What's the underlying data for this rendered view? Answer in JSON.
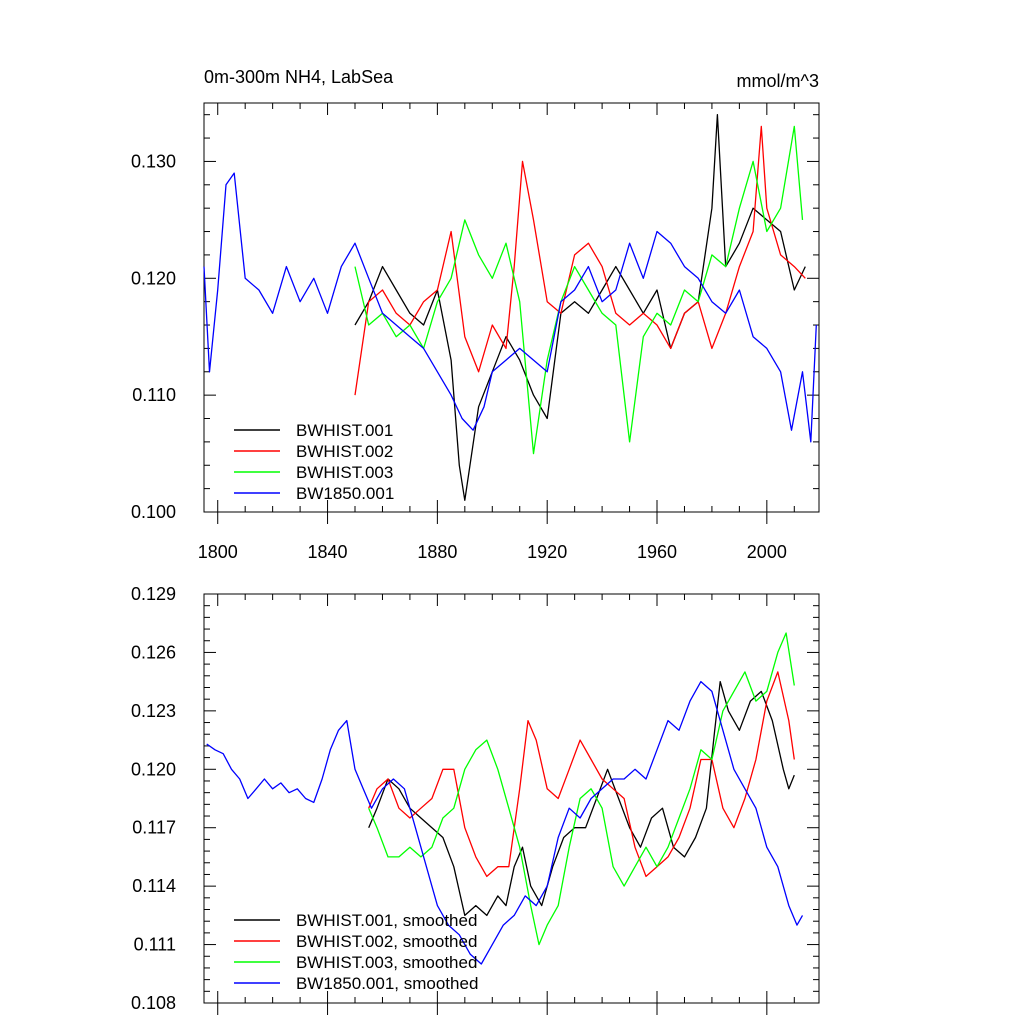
{
  "chart_data": [
    {
      "type": "line",
      "title": "0m-300m NH4, LabSea",
      "units": "mmol/m^3",
      "xlabel": "",
      "ylabel": "",
      "xlim": [
        1795,
        2019
      ],
      "ylim": [
        0.1,
        0.135
      ],
      "xticks": [
        1800,
        1840,
        1880,
        1920,
        1960,
        2000
      ],
      "xtick_labels": [
        "1800",
        "1840",
        "1880",
        "1920",
        "1960",
        "2000"
      ],
      "yticks": [
        0.1,
        0.11,
        0.12,
        0.13
      ],
      "ytick_labels": [
        "0.100",
        "0.110",
        "0.120",
        "0.130"
      ],
      "legend_position": "bottom-left",
      "series": [
        {
          "name": "BWHIST.001",
          "color": "#000000",
          "x": [
            1850,
            1855,
            1860,
            1865,
            1870,
            1875,
            1880,
            1885,
            1888,
            1890,
            1895,
            1900,
            1905,
            1910,
            1915,
            1920,
            1925,
            1930,
            1935,
            1940,
            1945,
            1950,
            1955,
            1960,
            1965,
            1970,
            1975,
            1980,
            1982,
            1985,
            1990,
            1995,
            2000,
            2005,
            2010,
            2014
          ],
          "values": [
            0.116,
            0.118,
            0.121,
            0.119,
            0.117,
            0.116,
            0.119,
            0.113,
            0.104,
            0.101,
            0.109,
            0.112,
            0.115,
            0.113,
            0.11,
            0.108,
            0.117,
            0.118,
            0.117,
            0.119,
            0.121,
            0.119,
            0.117,
            0.119,
            0.114,
            0.117,
            0.118,
            0.126,
            0.134,
            0.121,
            0.123,
            0.126,
            0.125,
            0.124,
            0.119,
            0.121
          ]
        },
        {
          "name": "BWHIST.002",
          "color": "#ff0000",
          "x": [
            1850,
            1855,
            1860,
            1865,
            1870,
            1875,
            1880,
            1885,
            1890,
            1895,
            1900,
            1905,
            1908,
            1911,
            1915,
            1920,
            1925,
            1930,
            1935,
            1940,
            1945,
            1950,
            1955,
            1960,
            1965,
            1970,
            1975,
            1980,
            1985,
            1990,
            1995,
            1998,
            2000,
            2005,
            2010,
            2014
          ],
          "values": [
            0.11,
            0.118,
            0.119,
            0.117,
            0.116,
            0.118,
            0.119,
            0.124,
            0.115,
            0.112,
            0.116,
            0.114,
            0.121,
            0.13,
            0.125,
            0.118,
            0.117,
            0.122,
            0.123,
            0.121,
            0.117,
            0.116,
            0.117,
            0.116,
            0.114,
            0.117,
            0.118,
            0.114,
            0.117,
            0.121,
            0.124,
            0.133,
            0.126,
            0.122,
            0.121,
            0.12
          ]
        },
        {
          "name": "BWHIST.003",
          "color": "#00ff00",
          "x": [
            1850,
            1855,
            1860,
            1865,
            1870,
            1875,
            1880,
            1885,
            1890,
            1895,
            1900,
            1905,
            1910,
            1915,
            1920,
            1925,
            1930,
            1935,
            1940,
            1945,
            1950,
            1955,
            1960,
            1965,
            1970,
            1975,
            1980,
            1985,
            1990,
            1995,
            2000,
            2005,
            2010,
            2013
          ],
          "values": [
            0.121,
            0.116,
            0.117,
            0.115,
            0.116,
            0.114,
            0.118,
            0.12,
            0.125,
            0.122,
            0.12,
            0.123,
            0.118,
            0.105,
            0.113,
            0.118,
            0.121,
            0.119,
            0.117,
            0.116,
            0.106,
            0.115,
            0.117,
            0.116,
            0.119,
            0.118,
            0.122,
            0.121,
            0.126,
            0.13,
            0.124,
            0.126,
            0.133,
            0.125
          ]
        },
        {
          "name": "BW1850.001",
          "color": "#0000ff",
          "x": [
            1795,
            1797,
            1800,
            1803,
            1806,
            1810,
            1815,
            1820,
            1825,
            1830,
            1835,
            1840,
            1845,
            1850,
            1855,
            1860,
            1865,
            1870,
            1875,
            1880,
            1885,
            1889,
            1893,
            1897,
            1900,
            1905,
            1910,
            1915,
            1920,
            1925,
            1930,
            1935,
            1940,
            1945,
            1950,
            1955,
            1960,
            1965,
            1970,
            1975,
            1980,
            1985,
            1990,
            1995,
            2000,
            2005,
            2009,
            2013,
            2016,
            2018
          ],
          "values": [
            0.121,
            0.112,
            0.119,
            0.128,
            0.129,
            0.12,
            0.119,
            0.117,
            0.121,
            0.118,
            0.12,
            0.117,
            0.121,
            0.123,
            0.12,
            0.117,
            0.116,
            0.115,
            0.114,
            0.112,
            0.11,
            0.108,
            0.107,
            0.109,
            0.112,
            0.113,
            0.114,
            0.113,
            0.112,
            0.118,
            0.119,
            0.121,
            0.118,
            0.119,
            0.123,
            0.12,
            0.124,
            0.123,
            0.121,
            0.12,
            0.118,
            0.117,
            0.119,
            0.115,
            0.114,
            0.112,
            0.107,
            0.112,
            0.106,
            0.116
          ]
        }
      ]
    },
    {
      "type": "line",
      "title": "",
      "xlabel": "",
      "ylabel": "",
      "xlim": [
        1795,
        2019
      ],
      "ylim": [
        0.108,
        0.129
      ],
      "yticks": [
        0.108,
        0.111,
        0.114,
        0.117,
        0.12,
        0.123,
        0.126,
        0.129
      ],
      "ytick_labels": [
        "0.108",
        "0.111",
        "0.114",
        "0.117",
        "0.120",
        "0.123",
        "0.126",
        "0.129"
      ],
      "legend_position": "bottom-left",
      "series": [
        {
          "name": "BWHIST.001, smoothed",
          "color": "#000000",
          "x": [
            1855,
            1858,
            1862,
            1866,
            1870,
            1874,
            1878,
            1882,
            1886,
            1890,
            1894,
            1898,
            1902,
            1905,
            1908,
            1911,
            1914,
            1918,
            1922,
            1926,
            1930,
            1934,
            1938,
            1942,
            1946,
            1950,
            1954,
            1958,
            1962,
            1966,
            1970,
            1974,
            1978,
            1981,
            1983,
            1986,
            1990,
            1994,
            1998,
            2002,
            2006,
            2008,
            2010
          ],
          "values": [
            0.117,
            0.118,
            0.1195,
            0.119,
            0.118,
            0.1175,
            0.117,
            0.1165,
            0.115,
            0.1125,
            0.113,
            0.1125,
            0.1135,
            0.113,
            0.115,
            0.116,
            0.114,
            0.113,
            0.115,
            0.1165,
            0.117,
            0.117,
            0.1185,
            0.12,
            0.1185,
            0.117,
            0.116,
            0.1175,
            0.118,
            0.116,
            0.1155,
            0.1165,
            0.118,
            0.122,
            0.1245,
            0.123,
            0.122,
            0.1235,
            0.124,
            0.1225,
            0.12,
            0.119,
            0.1197
          ]
        },
        {
          "name": "BWHIST.002, smoothed",
          "color": "#ff0000",
          "x": [
            1855,
            1858,
            1862,
            1866,
            1870,
            1874,
            1878,
            1882,
            1886,
            1890,
            1894,
            1898,
            1902,
            1906,
            1910,
            1913,
            1916,
            1920,
            1924,
            1928,
            1932,
            1936,
            1940,
            1944,
            1948,
            1952,
            1956,
            1960,
            1964,
            1968,
            1972,
            1976,
            1980,
            1984,
            1988,
            1992,
            1996,
            2000,
            2004,
            2008,
            2010
          ],
          "values": [
            0.118,
            0.119,
            0.1195,
            0.118,
            0.1175,
            0.118,
            0.1185,
            0.12,
            0.12,
            0.117,
            0.1155,
            0.1145,
            0.115,
            0.115,
            0.119,
            0.1225,
            0.1215,
            0.119,
            0.1185,
            0.12,
            0.1215,
            0.1205,
            0.1195,
            0.119,
            0.1185,
            0.116,
            0.1145,
            0.115,
            0.1155,
            0.1165,
            0.118,
            0.1205,
            0.1205,
            0.118,
            0.117,
            0.1185,
            0.1205,
            0.1235,
            0.125,
            0.1225,
            0.1205
          ]
        },
        {
          "name": "BWHIST.003, smoothed",
          "color": "#00ff00",
          "x": [
            1855,
            1858,
            1862,
            1866,
            1870,
            1874,
            1878,
            1882,
            1886,
            1890,
            1894,
            1898,
            1902,
            1906,
            1910,
            1914,
            1917,
            1920,
            1924,
            1928,
            1932,
            1936,
            1940,
            1944,
            1948,
            1952,
            1956,
            1960,
            1964,
            1968,
            1972,
            1976,
            1980,
            1984,
            1988,
            1992,
            1996,
            2000,
            2004,
            2007,
            2010
          ],
          "values": [
            0.118,
            0.117,
            0.1155,
            0.1155,
            0.116,
            0.1155,
            0.116,
            0.1175,
            0.118,
            0.12,
            0.121,
            0.1215,
            0.12,
            0.118,
            0.116,
            0.113,
            0.111,
            0.112,
            0.113,
            0.116,
            0.1185,
            0.119,
            0.118,
            0.115,
            0.114,
            0.115,
            0.116,
            0.115,
            0.116,
            0.1175,
            0.119,
            0.121,
            0.1205,
            0.123,
            0.124,
            0.125,
            0.1235,
            0.124,
            0.126,
            0.127,
            0.1243
          ]
        },
        {
          "name": "BW1850.001, smoothed",
          "color": "#0000ff",
          "x": [
            1796,
            1799,
            1802,
            1805,
            1808,
            1811,
            1814,
            1817,
            1820,
            1823,
            1826,
            1829,
            1832,
            1835,
            1838,
            1841,
            1844,
            1847,
            1850,
            1853,
            1856,
            1860,
            1864,
            1868,
            1872,
            1876,
            1880,
            1884,
            1888,
            1892,
            1896,
            1900,
            1904,
            1908,
            1912,
            1916,
            1920,
            1924,
            1928,
            1932,
            1936,
            1940,
            1944,
            1948,
            1952,
            1956,
            1960,
            1964,
            1968,
            1972,
            1976,
            1980,
            1984,
            1988,
            1992,
            1996,
            2000,
            2004,
            2008,
            2011,
            2013
          ],
          "values": [
            0.1213,
            0.121,
            0.1208,
            0.12,
            0.1195,
            0.1185,
            0.119,
            0.1195,
            0.119,
            0.1193,
            0.1188,
            0.119,
            0.1185,
            0.1183,
            0.1195,
            0.121,
            0.122,
            0.1225,
            0.12,
            0.119,
            0.118,
            0.119,
            0.1195,
            0.119,
            0.117,
            0.115,
            0.113,
            0.112,
            0.1115,
            0.1105,
            0.11,
            0.111,
            0.112,
            0.1125,
            0.1135,
            0.113,
            0.114,
            0.1165,
            0.118,
            0.1175,
            0.1185,
            0.119,
            0.1195,
            0.1195,
            0.12,
            0.1195,
            0.121,
            0.1225,
            0.122,
            0.1235,
            0.1245,
            0.124,
            0.122,
            0.12,
            0.119,
            0.118,
            0.116,
            0.115,
            0.113,
            0.112,
            0.1125
          ]
        }
      ]
    }
  ]
}
